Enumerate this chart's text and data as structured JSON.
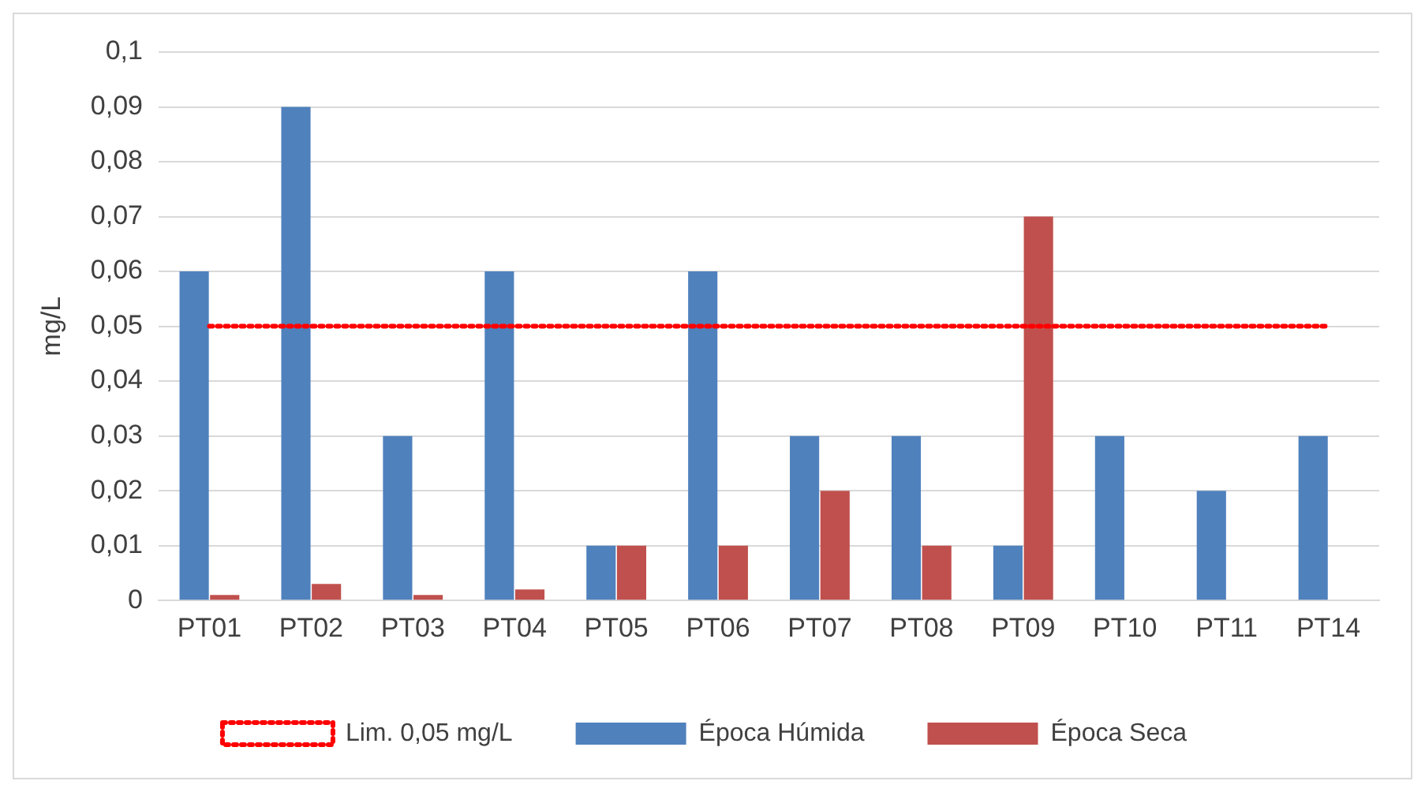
{
  "chart_data": {
    "type": "bar",
    "ylabel": "mg/L",
    "categories": [
      "PT01",
      "PT02",
      "PT03",
      "PT04",
      "PT05",
      "PT06",
      "PT07",
      "PT08",
      "PT09",
      "PT10",
      "PT11",
      "PT14"
    ],
    "series": [
      {
        "name": "Época Húmida",
        "color": "#4f81bd",
        "values": [
          0.06,
          0.09,
          0.03,
          0.06,
          0.01,
          0.06,
          0.03,
          0.03,
          0.01,
          0.03,
          0.02,
          0.03
        ]
      },
      {
        "name": "Época Seca",
        "color": "#c0504d",
        "values": [
          0.001,
          0.003,
          0.001,
          0.002,
          0.01,
          0.01,
          0.02,
          0.01,
          0.07,
          null,
          null,
          null
        ]
      },
      {
        "name": "Lim. 0,05 mg/L",
        "type": "line",
        "color": "#ff0000",
        "line_style": "dotted",
        "marker": "none",
        "values": [
          0.05,
          0.05,
          0.05,
          0.05,
          0.05,
          0.05,
          0.05,
          0.05,
          0.05,
          0.05,
          0.05,
          0.05
        ]
      }
    ],
    "ylim": [
      0,
      0.1
    ],
    "yticks": [
      0,
      {
        "value": 0.01,
        "label": "0,01"
      },
      {
        "value": 0.02,
        "label": "0,02"
      },
      {
        "value": 0.03,
        "label": "0,03"
      },
      {
        "value": 0.04,
        "label": "0,04"
      },
      {
        "value": 0.05,
        "label": "0,05"
      },
      {
        "value": 0.06,
        "label": "0,06"
      },
      {
        "value": 0.07,
        "label": "0,07"
      },
      {
        "value": 0.08,
        "label": "0,08"
      },
      {
        "value": 0.09,
        "label": "0,09"
      },
      {
        "value": 0.1,
        "label": "0,1"
      }
    ],
    "grid": "y",
    "legend": "bottom"
  }
}
